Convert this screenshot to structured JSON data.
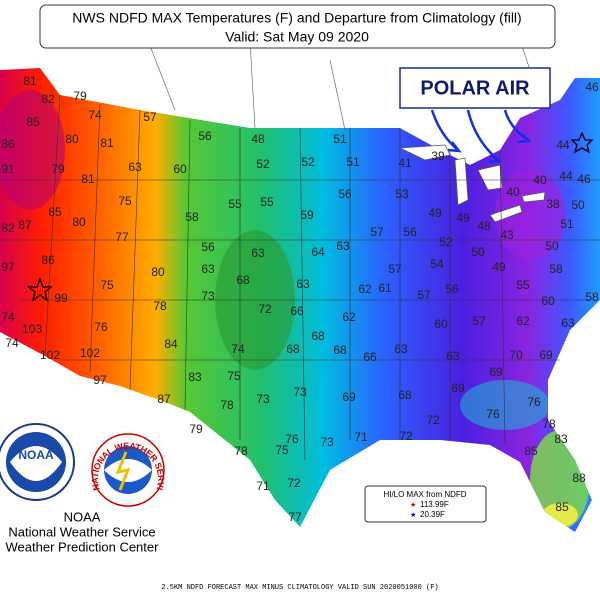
{
  "title": "NWS NDFD MAX Temperatures (F) and Departure from Climatology (fill)",
  "subtitle": "Valid: Sat May 09 2020",
  "annotation": "POLAR AIR",
  "temperatures": [
    81,
    82,
    79,
    85,
    74,
    57,
    80,
    81,
    56,
    48,
    51,
    46,
    86,
    63,
    60,
    52,
    52,
    51,
    41,
    39,
    44,
    91,
    79,
    81,
    56,
    53,
    40,
    40,
    44,
    46,
    75,
    55,
    55,
    49,
    49,
    48,
    38,
    50,
    85,
    80,
    58,
    59,
    57,
    56,
    43,
    51,
    82,
    87,
    77,
    56,
    52,
    50,
    50,
    97,
    86,
    80,
    63,
    63,
    64,
    63,
    57,
    54,
    49,
    58,
    99,
    75,
    68,
    63,
    62,
    61,
    56,
    57,
    55,
    73,
    78,
    72,
    66,
    62,
    60,
    58,
    74,
    103,
    76,
    60,
    57,
    62,
    63,
    84,
    74,
    74,
    68,
    68,
    68,
    63,
    66,
    102,
    102,
    63,
    70,
    69,
    83,
    75,
    73,
    69,
    68,
    69,
    69,
    97,
    87,
    78,
    73,
    79,
    72,
    76,
    76,
    78,
    83,
    76,
    73,
    71,
    72,
    78,
    75,
    85,
    71,
    72,
    88,
    77,
    85
  ],
  "legend": {
    "title": "HI/LO MAX from NDFD",
    "high": "113.99F",
    "low": "20.39F"
  },
  "logos": {
    "noaa": "NOAA",
    "nws": "NATIONAL WEATHER SERVICE"
  },
  "credits": [
    "NOAA",
    "National Weather Service",
    "Weather Prediction Center"
  ],
  "footer": "2.5KM NDFD FORECAST MAX MINUS CLIMATOLOGY VALID SUN 2020051000 (F)"
}
